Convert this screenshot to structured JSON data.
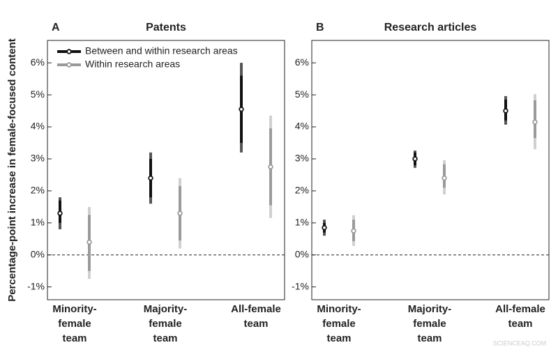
{
  "y_label": "Percentage-point increase in female-focused content",
  "watermark": "SCIENCEAQ.COM",
  "chart_data": [
    {
      "type": "interval",
      "panel": "A",
      "title": "Patents",
      "categories": [
        [
          "Minority-",
          "female",
          "team"
        ],
        [
          "Majority-",
          "female",
          "team"
        ],
        [
          "All-female",
          "team"
        ]
      ],
      "ylim": [
        -1.4,
        6.7
      ],
      "yticks": [
        {
          "value": -1,
          "label": "-1%"
        },
        {
          "value": 0,
          "label": "0%"
        },
        {
          "value": 1,
          "label": "1%"
        },
        {
          "value": 2,
          "label": "2%"
        },
        {
          "value": 3,
          "label": "3%"
        },
        {
          "value": 4,
          "label": "4%"
        },
        {
          "value": 5,
          "label": "5%"
        },
        {
          "value": 6,
          "label": "6%"
        }
      ],
      "zero_line": true,
      "legend": "upper left",
      "series": [
        {
          "name": "Between and within research areas",
          "color": "#111111",
          "outer_color": "#555555",
          "values": [
            1.3,
            2.4,
            4.55
          ],
          "inner_low": [
            1.0,
            1.8,
            3.5
          ],
          "inner_high": [
            1.7,
            3.0,
            5.6
          ],
          "outer_low": [
            0.8,
            1.6,
            3.2
          ],
          "outer_high": [
            1.8,
            3.2,
            6.0
          ]
        },
        {
          "name": "Within research areas",
          "color": "#9a9a9a",
          "outer_color": "#d0d0d0",
          "values": [
            0.4,
            1.3,
            2.75
          ],
          "inner_low": [
            -0.5,
            0.45,
            1.55
          ],
          "inner_high": [
            1.25,
            2.15,
            3.95
          ],
          "outer_low": [
            -0.75,
            0.2,
            1.15
          ],
          "outer_high": [
            1.5,
            2.4,
            4.35
          ]
        }
      ]
    },
    {
      "type": "interval",
      "panel": "B",
      "title": "Research articles",
      "categories": [
        [
          "Minority-",
          "female",
          "team"
        ],
        [
          "Majority-",
          "female",
          "team"
        ],
        [
          "All-female",
          "team"
        ]
      ],
      "ylim": [
        -1.4,
        6.7
      ],
      "yticks": [
        {
          "value": -1,
          "label": "-1%"
        },
        {
          "value": 0,
          "label": "0%"
        },
        {
          "value": 1,
          "label": "1%"
        },
        {
          "value": 2,
          "label": "2%"
        },
        {
          "value": 3,
          "label": "3%"
        },
        {
          "value": 4,
          "label": "4%"
        },
        {
          "value": 5,
          "label": "5%"
        },
        {
          "value": 6,
          "label": "6%"
        }
      ],
      "zero_line": true,
      "series": [
        {
          "color": "#111111",
          "outer_color": "#555555",
          "values": [
            0.85,
            3.0,
            4.5
          ],
          "inner_low": [
            0.7,
            2.8,
            4.2
          ],
          "inner_high": [
            1.0,
            3.2,
            4.85
          ],
          "outer_low": [
            0.6,
            2.72,
            4.07
          ],
          "outer_high": [
            1.1,
            3.26,
            4.96
          ]
        },
        {
          "color": "#9a9a9a",
          "outer_color": "#d0d0d0",
          "values": [
            0.75,
            2.4,
            4.15
          ],
          "inner_low": [
            0.43,
            2.1,
            3.65
          ],
          "inner_high": [
            1.1,
            2.83,
            4.83
          ],
          "outer_low": [
            0.28,
            1.89,
            3.3
          ],
          "outer_high": [
            1.24,
            2.96,
            5.02
          ]
        }
      ]
    }
  ]
}
